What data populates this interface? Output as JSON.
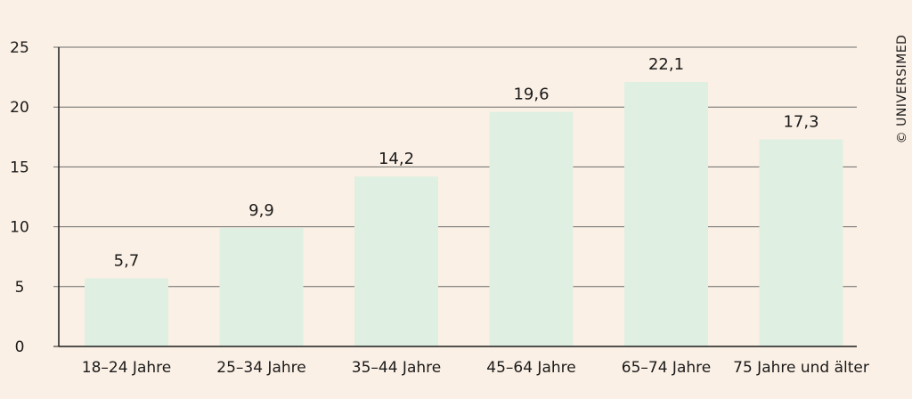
{
  "chart_data": {
    "type": "bar",
    "categories": [
      "18–24 Jahre",
      "25–34 Jahre",
      "35–44 Jahre",
      "45–64 Jahre",
      "65–74 Jahre",
      "75 Jahre und älter"
    ],
    "values": [
      5.7,
      9.9,
      14.2,
      19.6,
      22.1,
      17.3
    ],
    "data_labels": [
      "5,7",
      "9,9",
      "14,2",
      "19,6",
      "22,1",
      "17,3"
    ],
    "yticks": [
      0,
      5,
      10,
      15,
      20,
      25
    ],
    "ylim": [
      0,
      25
    ],
    "grid": true,
    "bar_color": "#dff0e2",
    "title": "",
    "xlabel": "",
    "ylabel": ""
  },
  "credit": "© UNIVERSIMED"
}
